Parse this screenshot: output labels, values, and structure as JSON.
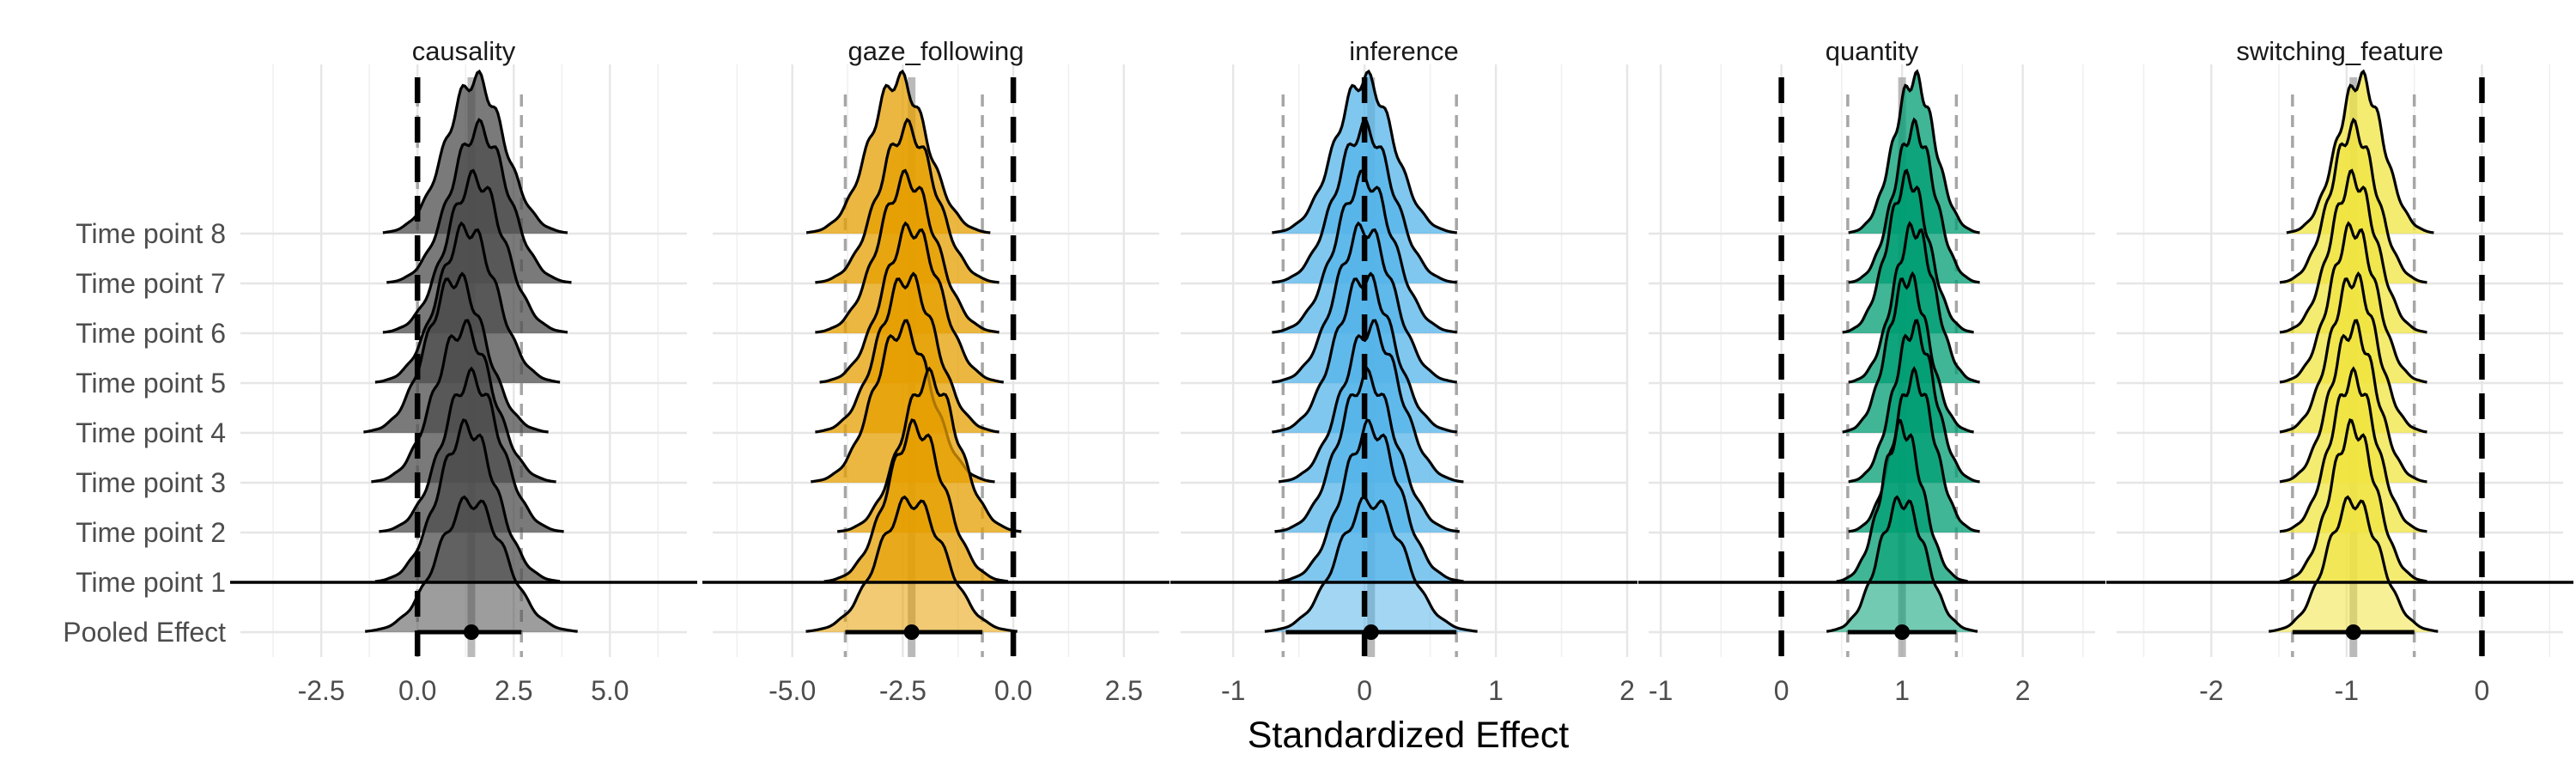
{
  "chart_data": {
    "type": "ridgeline",
    "xlabel": "Standardized Effect",
    "ylabel": "",
    "rows": [
      "Time point 8",
      "Time point 7",
      "Time point 6",
      "Time point 5",
      "Time point 4",
      "Time point 3",
      "Time point 2",
      "Time point 1",
      "Pooled Effect"
    ],
    "pooled_label": "Pooled Effect",
    "grid": true,
    "panels": [
      {
        "name": "causality",
        "color": "#4d4d4d",
        "xlim": [
          -4.6,
          7.0
        ],
        "xticks": [
          -2.5,
          0.0,
          2.5,
          5.0
        ],
        "xtick_labels": [
          "-2.5",
          "0.0",
          "2.5",
          "5.0"
        ],
        "reference_line": 0,
        "pooled_mean": 1.4,
        "pooled_ci": [
          0.0,
          2.7
        ],
        "dashed_bounds": [
          0.0,
          2.7
        ],
        "study_means": [
          1.5,
          1.6,
          1.5,
          1.3,
          1.0,
          1.2,
          1.4,
          1.3
        ],
        "spread": 0.75
      },
      {
        "name": "gaze_following",
        "color": "#E69F00",
        "xlim": [
          -6.8,
          3.3
        ],
        "xticks": [
          -5.0,
          -2.5,
          0.0,
          2.5
        ],
        "xtick_labels": [
          "-5.0",
          "-2.5",
          "0.0",
          "2.5"
        ],
        "reference_line": 0,
        "pooled_mean": -2.3,
        "pooled_ci": [
          -3.8,
          -0.7
        ],
        "dashed_bounds": [
          -3.8,
          -0.7
        ],
        "study_means": [
          -2.6,
          -2.4,
          -2.4,
          -2.3,
          -2.4,
          -2.5,
          -1.9,
          -2.2
        ],
        "spread": 0.65
      },
      {
        "name": "inference",
        "color": "#56B4E9",
        "xlim": [
          -1.4,
          2.0
        ],
        "xticks": [
          -1,
          0,
          1,
          2
        ],
        "xtick_labels": [
          "-1",
          "0",
          "1",
          "2"
        ],
        "reference_line": 0,
        "pooled_mean": 0.05,
        "pooled_ci": [
          -0.6,
          0.7
        ],
        "dashed_bounds": [
          -0.62,
          0.7
        ],
        "study_means": [
          0.0,
          0.0,
          0.0,
          0.0,
          0.0,
          0.05,
          0.02,
          0.05
        ],
        "spread": 0.22
      },
      {
        "name": "quantity",
        "color": "#009E73",
        "xlim": [
          -1.1,
          2.6
        ],
        "xticks": [
          -1,
          0,
          1,
          2
        ],
        "xtick_labels": [
          "-1",
          "0",
          "1",
          "2"
        ],
        "reference_line": 0,
        "pooled_mean": 1.0,
        "pooled_ci": [
          0.55,
          1.45
        ],
        "dashed_bounds": [
          0.55,
          1.45
        ],
        "study_means": [
          1.1,
          1.1,
          1.05,
          1.1,
          1.05,
          1.1,
          1.1,
          1.0
        ],
        "spread": 0.17
      },
      {
        "name": "switching_feature",
        "color": "#F0E442",
        "xlim": [
          -2.7,
          0.6
        ],
        "xticks": [
          -2,
          -1,
          0
        ],
        "xtick_labels": [
          "-2",
          "-1",
          "0"
        ],
        "reference_line": 0,
        "pooled_mean": -0.95,
        "pooled_ci": [
          -1.4,
          -0.5
        ],
        "dashed_bounds": [
          -1.4,
          -0.5
        ],
        "study_means": [
          -0.9,
          -0.95,
          -0.95,
          -0.95,
          -0.95,
          -0.95,
          -0.95,
          -0.95
        ],
        "spread": 0.17
      }
    ]
  }
}
